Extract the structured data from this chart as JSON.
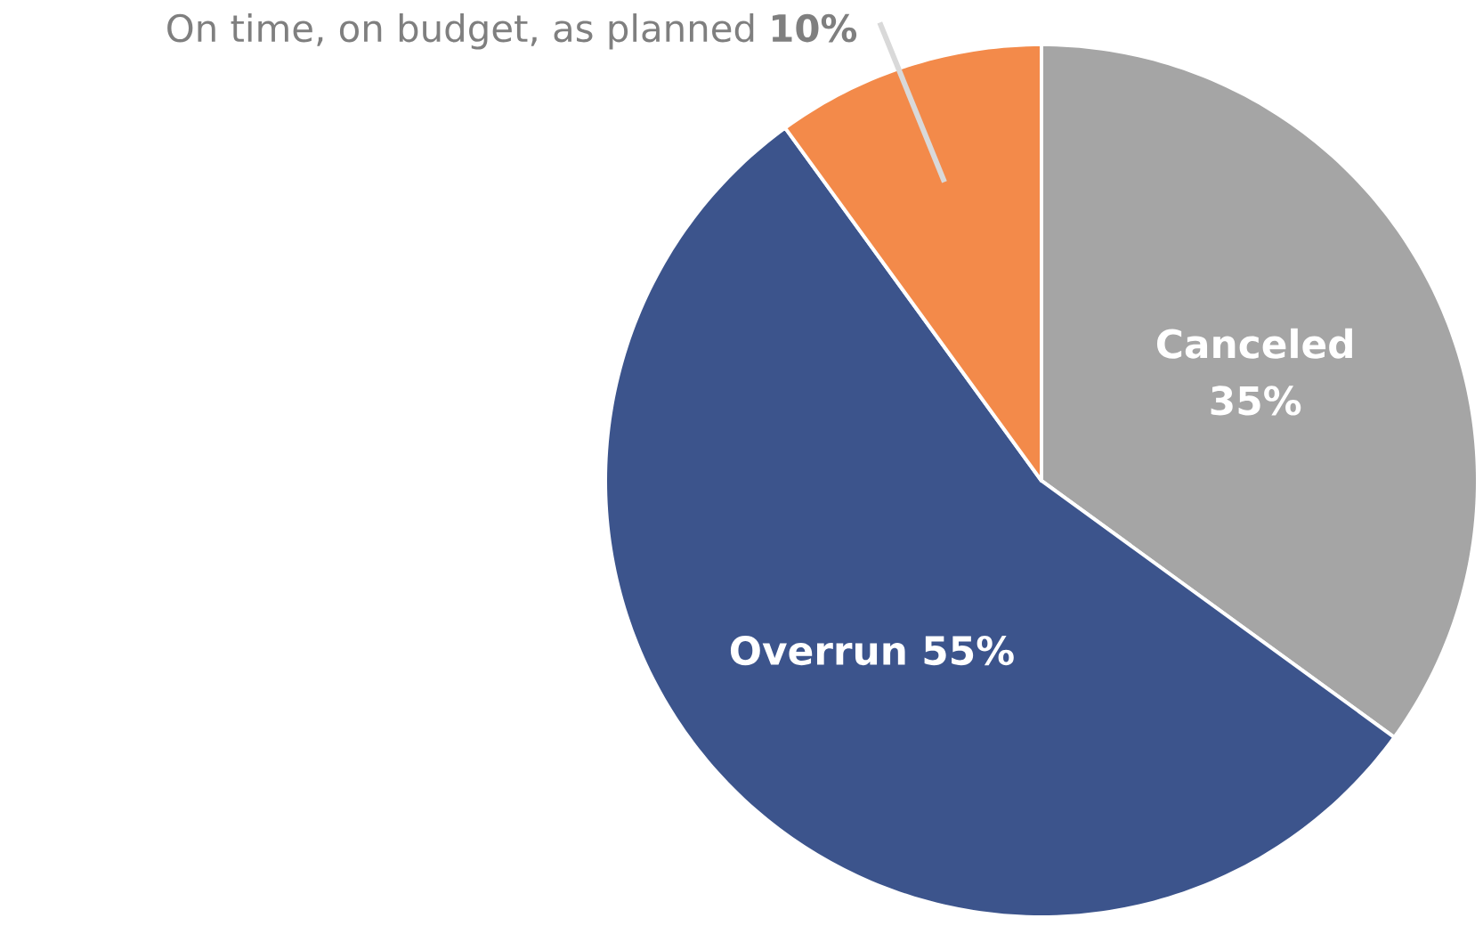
{
  "chart_data": {
    "type": "pie",
    "categories": [
      "Canceled",
      "Overrun",
      "On time, on budget, as planned"
    ],
    "values": [
      35,
      55,
      10
    ],
    "colors": [
      "#a5a5a5",
      "#3c548c",
      "#f38a4a"
    ],
    "value_labels": [
      "35%",
      "55%",
      "10%"
    ]
  }
}
